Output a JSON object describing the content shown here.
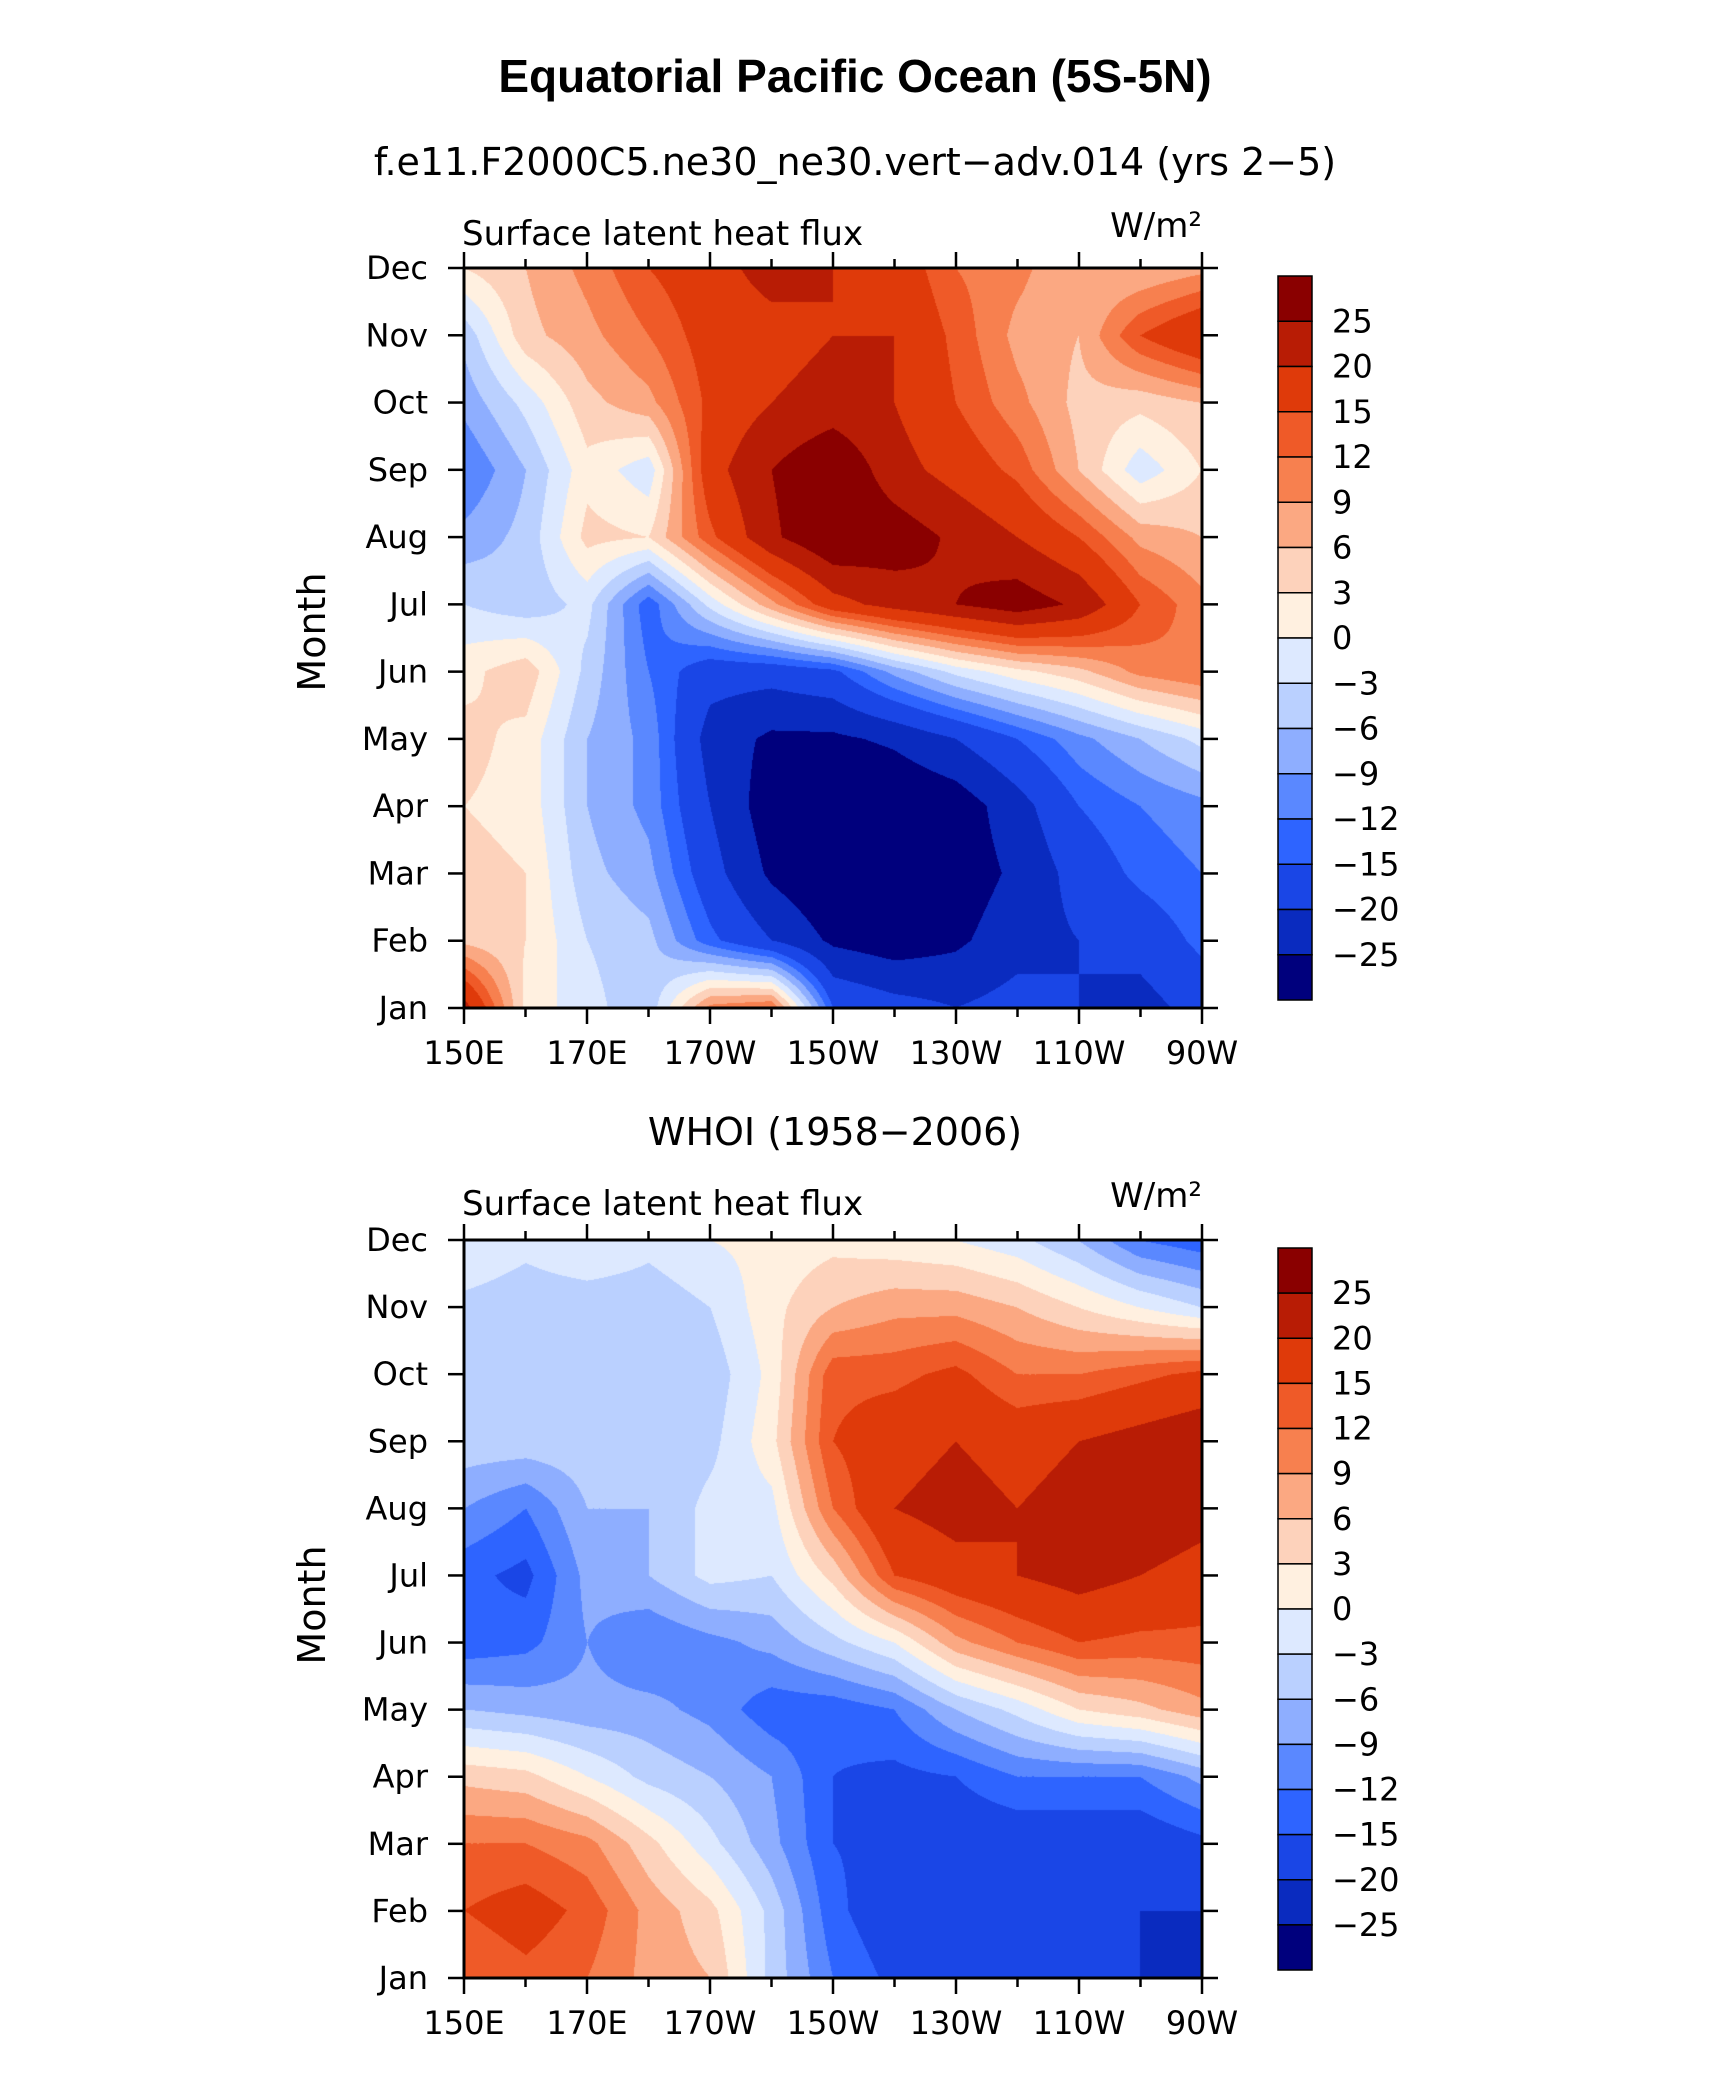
{
  "title": "Equatorial Pacific Ocean (5S-5N)",
  "colors": [
    "#00007d",
    "#0a2bbf",
    "#1a46e6",
    "#2e64ff",
    "#5a88ff",
    "#8eaeff",
    "#bad0ff",
    "#dde9ff",
    "#fff0e0",
    "#fdd2bb",
    "#fba882",
    "#f7804f",
    "#ef5a28",
    "#df3a0a",
    "#b81c05",
    "#8a0000"
  ],
  "colorbar_levels": [
    "25",
    "20",
    "15",
    "12",
    "9",
    "6",
    "3",
    "0",
    "−3",
    "−6",
    "−9",
    "−12",
    "−15",
    "−20",
    "−25"
  ],
  "chart_data": [
    {
      "type": "heatmap",
      "subtitle": "f.e11.F2000C5.ne30_ne30.vert−adv.014 (yrs 2−5)",
      "left_label": "Surface latent heat flux",
      "units": "W/m²",
      "ylabel": "Month",
      "x_ticks": [
        "150E",
        "170E",
        "170W",
        "150W",
        "130W",
        "110W",
        "90W"
      ],
      "y_ticks": [
        "Jan",
        "Feb",
        "Mar",
        "Apr",
        "May",
        "Jun",
        "Jul",
        "Aug",
        "Sep",
        "Oct",
        "Nov",
        "Dec"
      ],
      "xlim": [
        150,
        270
      ],
      "ylim": [
        1,
        12
      ],
      "levels": [
        -25,
        -20,
        -15,
        -12,
        -9,
        -6,
        -3,
        0,
        3,
        6,
        9,
        12,
        15,
        20,
        25
      ],
      "x": [
        150,
        160,
        170,
        180,
        190,
        200,
        210,
        220,
        230,
        240,
        250,
        260,
        270
      ],
      "y": [
        1,
        2,
        3,
        4,
        5,
        6,
        7,
        8,
        9,
        10,
        11,
        12
      ],
      "z": [
        [
          22,
          2,
          -2,
          -5,
          10,
          12,
          -15,
          -18,
          -20,
          -18,
          -20,
          -22,
          -18
        ],
        [
          5,
          3,
          -3,
          -5,
          -14,
          -20,
          -26,
          -28,
          -26,
          -22,
          -20,
          -18,
          -14
        ],
        [
          4,
          3,
          -5,
          -8,
          -18,
          -26,
          -30,
          -30,
          -28,
          -24,
          -18,
          -14,
          -12
        ],
        [
          3,
          2,
          -6,
          -10,
          -20,
          -28,
          -32,
          -30,
          -28,
          -22,
          -15,
          -12,
          -10
        ],
        [
          4,
          2,
          -6,
          -10,
          -22,
          -26,
          -26,
          -24,
          -20,
          -15,
          -10,
          -6,
          -2
        ],
        [
          2,
          5,
          -4,
          -12,
          -18,
          -18,
          -16,
          -8,
          -2,
          2,
          5,
          10,
          12
        ],
        [
          -3,
          -5,
          -2,
          -14,
          -2,
          8,
          18,
          22,
          25,
          28,
          24,
          15,
          10
        ],
        [
          -8,
          -5,
          4,
          3,
          14,
          24,
          30,
          28,
          24,
          20,
          15,
          8,
          6
        ],
        [
          -12,
          -6,
          2,
          -2,
          18,
          25,
          30,
          22,
          18,
          14,
          6,
          -2,
          3
        ],
        [
          -8,
          -2,
          5,
          8,
          16,
          20,
          22,
          20,
          15,
          10,
          5,
          4,
          6
        ],
        [
          -5,
          5,
          8,
          12,
          17,
          18,
          20,
          20,
          14,
          8,
          6,
          15,
          20
        ],
        [
          3,
          6,
          10,
          15,
          18,
          22,
          20,
          18,
          12,
          10,
          6,
          6,
          8
        ]
      ]
    },
    {
      "type": "heatmap",
      "subtitle": "WHOI (1958−2006)",
      "left_label": "Surface latent heat flux",
      "units": "W/m²",
      "ylabel": "Month",
      "x_ticks": [
        "150E",
        "170E",
        "170W",
        "150W",
        "130W",
        "110W",
        "90W"
      ],
      "y_ticks": [
        "Jan",
        "Feb",
        "Mar",
        "Apr",
        "May",
        "Jun",
        "Jul",
        "Aug",
        "Sep",
        "Oct",
        "Nov",
        "Dec"
      ],
      "xlim": [
        150,
        270
      ],
      "ylim": [
        1,
        12
      ],
      "levels": [
        -25,
        -20,
        -15,
        -12,
        -9,
        -6,
        -3,
        0,
        3,
        6,
        9,
        12,
        15,
        20,
        25
      ],
      "x": [
        150,
        160,
        170,
        180,
        190,
        200,
        210,
        220,
        230,
        240,
        250,
        260,
        270
      ],
      "y": [
        1,
        2,
        3,
        4,
        5,
        6,
        7,
        8,
        9,
        10,
        11,
        12
      ],
      "z": [
        [
          12,
          14,
          12,
          8,
          6,
          -4,
          -12,
          -16,
          -18,
          -18,
          -18,
          -20,
          -22
        ],
        [
          15,
          17,
          14,
          8,
          4,
          -4,
          -14,
          -18,
          -18,
          -18,
          -20,
          -20,
          -20
        ],
        [
          12,
          12,
          10,
          4,
          -2,
          -8,
          -15,
          -16,
          -18,
          -18,
          -18,
          -18,
          -16
        ],
        [
          5,
          4,
          0,
          -4,
          -6,
          -9,
          -15,
          -16,
          -15,
          -12,
          -12,
          -12,
          -8
        ],
        [
          -6,
          -7,
          -8,
          -8,
          -10,
          -14,
          -14,
          -12,
          -6,
          -2,
          3,
          5,
          8
        ],
        [
          -14,
          -13,
          -9,
          -12,
          -10,
          -8,
          -4,
          0,
          8,
          12,
          15,
          14,
          14
        ],
        [
          -14,
          -16,
          -8,
          -6,
          -2,
          -3,
          4,
          15,
          18,
          20,
          22,
          20,
          18
        ],
        [
          -9,
          -12,
          -6,
          -6,
          -2,
          -1,
          12,
          20,
          22,
          20,
          22,
          24,
          22
        ],
        [
          -4,
          -4,
          -4,
          -6,
          -4,
          2,
          15,
          18,
          20,
          18,
          20,
          22,
          24
        ],
        [
          -3,
          -4,
          -5,
          -6,
          -5,
          1,
          14,
          14,
          16,
          12,
          12,
          14,
          16
        ],
        [
          -4,
          -5,
          -5,
          -5,
          -3,
          2,
          6,
          8,
          8,
          6,
          3,
          0,
          -3
        ],
        [
          0,
          -2,
          0,
          -2,
          0,
          1,
          2,
          1,
          0,
          -2,
          -6,
          -12,
          -14
        ]
      ]
    }
  ]
}
